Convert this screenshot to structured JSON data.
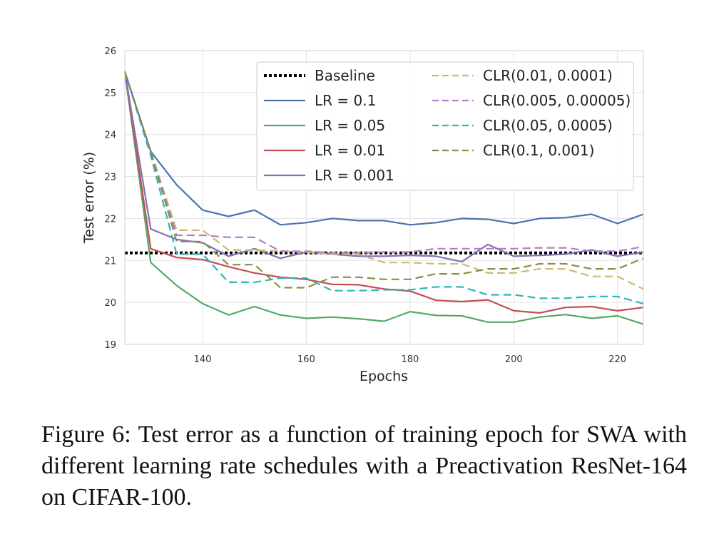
{
  "chart_data": {
    "type": "line",
    "xlabel": "Epochs",
    "ylabel": "Test error (%)",
    "xlim": [
      125,
      225
    ],
    "ylim": [
      19,
      26
    ],
    "xticks": [
      140,
      160,
      180,
      200,
      220
    ],
    "yticks": [
      19,
      20,
      21,
      22,
      23,
      24,
      25,
      26
    ],
    "grid": true,
    "legend_position": "top-right",
    "series": [
      {
        "name": "Baseline",
        "color": "#000000",
        "style": "dotted",
        "hline": 21.18
      },
      {
        "name": "LR = 0.1",
        "color": "#4c72b0",
        "style": "solid",
        "x": [
          125,
          130,
          135,
          140,
          145,
          150,
          155,
          160,
          165,
          170,
          175,
          180,
          185,
          190,
          195,
          200,
          205,
          210,
          215,
          220,
          225
        ],
        "y": [
          25.5,
          23.6,
          22.8,
          22.2,
          22.05,
          22.2,
          21.85,
          21.9,
          22.0,
          21.95,
          21.95,
          21.85,
          21.9,
          22.0,
          21.98,
          21.88,
          22.0,
          22.02,
          22.1,
          21.88,
          22.1
        ]
      },
      {
        "name": "LR = 0.05",
        "color": "#55a868",
        "style": "solid",
        "x": [
          125,
          130,
          135,
          140,
          145,
          150,
          155,
          160,
          165,
          170,
          175,
          180,
          185,
          190,
          195,
          200,
          205,
          210,
          215,
          220,
          225
        ],
        "y": [
          25.5,
          20.95,
          20.4,
          19.97,
          19.7,
          19.9,
          19.7,
          19.62,
          19.65,
          19.61,
          19.55,
          19.78,
          19.69,
          19.68,
          19.53,
          19.53,
          19.65,
          19.71,
          19.62,
          19.68,
          19.48
        ]
      },
      {
        "name": "LR = 0.01",
        "color": "#c44e52",
        "style": "solid",
        "x": [
          125,
          130,
          135,
          140,
          145,
          150,
          155,
          160,
          165,
          170,
          175,
          180,
          185,
          190,
          195,
          200,
          205,
          210,
          215,
          220,
          225
        ],
        "y": [
          25.5,
          21.28,
          21.07,
          21.02,
          20.85,
          20.7,
          20.6,
          20.55,
          20.43,
          20.42,
          20.32,
          20.27,
          20.05,
          20.02,
          20.06,
          19.8,
          19.75,
          19.88,
          19.9,
          19.8,
          19.88
        ]
      },
      {
        "name": "LR = 0.001",
        "color": "#8172b2",
        "style": "solid",
        "x": [
          125,
          130,
          135,
          140,
          145,
          150,
          155,
          160,
          165,
          170,
          175,
          180,
          185,
          190,
          195,
          200,
          205,
          210,
          215,
          220,
          225
        ],
        "y": [
          25.5,
          21.75,
          21.5,
          21.42,
          21.1,
          21.28,
          21.05,
          21.2,
          21.15,
          21.1,
          21.1,
          21.12,
          21.1,
          20.97,
          21.38,
          21.1,
          21.12,
          21.15,
          21.25,
          21.1,
          21.2
        ]
      },
      {
        "name": "CLR(0.01, 0.0001)",
        "color": "#ccb974",
        "style": "dashed",
        "x": [
          125,
          130,
          135,
          140,
          145,
          150,
          155,
          160,
          165,
          170,
          175,
          180,
          185,
          190,
          195,
          200,
          205,
          210,
          215,
          220,
          225
        ],
        "y": [
          25.5,
          23.6,
          21.72,
          21.72,
          21.25,
          21.25,
          21.22,
          21.2,
          21.15,
          21.15,
          20.95,
          20.95,
          20.92,
          20.92,
          20.7,
          20.7,
          20.8,
          20.8,
          20.62,
          20.62,
          20.32
        ]
      },
      {
        "name": "CLR(0.005, 0.00005)",
        "color": "#b47cc7",
        "style": "dashed",
        "x": [
          125,
          130,
          135,
          140,
          145,
          150,
          155,
          160,
          165,
          170,
          175,
          180,
          185,
          190,
          195,
          200,
          205,
          210,
          215,
          220,
          225
        ],
        "y": [
          25.5,
          23.6,
          21.6,
          21.6,
          21.55,
          21.55,
          21.22,
          21.22,
          21.18,
          21.18,
          21.2,
          21.2,
          21.28,
          21.28,
          21.28,
          21.28,
          21.3,
          21.3,
          21.22,
          21.22,
          21.33
        ]
      },
      {
        "name": "CLR(0.05, 0.0005)",
        "color": "#2fb5b5",
        "style": "dashed",
        "x": [
          125,
          130,
          135,
          140,
          145,
          150,
          155,
          160,
          165,
          170,
          175,
          180,
          185,
          190,
          195,
          200,
          205,
          210,
          215,
          220,
          225
        ],
        "y": [
          25.5,
          23.5,
          21.15,
          21.15,
          20.48,
          20.48,
          20.58,
          20.58,
          20.28,
          20.28,
          20.3,
          20.3,
          20.37,
          20.37,
          20.18,
          20.18,
          20.1,
          20.1,
          20.14,
          20.14,
          19.97
        ]
      },
      {
        "name": "CLR(0.1, 0.001)",
        "color": "#8c8c48",
        "style": "dashed",
        "x": [
          125,
          130,
          135,
          140,
          145,
          150,
          155,
          160,
          165,
          170,
          175,
          180,
          185,
          190,
          195,
          200,
          205,
          210,
          215,
          220,
          225
        ],
        "y": [
          25.5,
          23.6,
          21.45,
          21.45,
          20.9,
          20.9,
          20.35,
          20.35,
          20.6,
          20.6,
          20.55,
          20.55,
          20.68,
          20.68,
          20.8,
          20.8,
          20.92,
          20.92,
          20.8,
          20.8,
          21.05
        ]
      }
    ]
  },
  "caption": "Figure 6:  Test error as a function of training epoch for SWA with different learning rate schedules with a Preactivation ResNet-164 on CIFAR-100."
}
